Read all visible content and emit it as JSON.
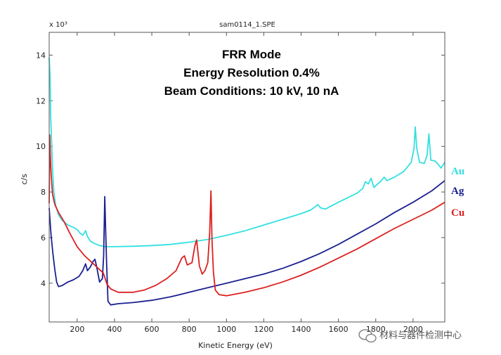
{
  "chart_data": {
    "type": "line",
    "title": "sam0114_1.SPE",
    "xlabel": "Kinetic Energy (eV)",
    "ylabel": "c/s",
    "y_multiplier": "x 10³",
    "xlim": [
      50,
      2170
    ],
    "ylim": [
      2.3,
      15
    ],
    "x_ticks": [
      200,
      400,
      600,
      800,
      1000,
      1200,
      1400,
      1600,
      1800,
      2000
    ],
    "y_ticks": [
      4,
      6,
      8,
      10,
      12,
      14
    ],
    "annotations": [
      "FRR Mode",
      "Energy Resolution 0.4%",
      "Beam Conditions: 10 kV, 10 nA"
    ],
    "series": [
      {
        "name": "Au",
        "color": "#33e0e0",
        "points": [
          [
            50,
            13.9
          ],
          [
            55,
            13.0
          ],
          [
            58,
            11.3
          ],
          [
            62,
            10.4
          ],
          [
            68,
            9.0
          ],
          [
            75,
            8.0
          ],
          [
            85,
            7.4
          ],
          [
            100,
            7.0
          ],
          [
            120,
            6.75
          ],
          [
            150,
            6.55
          ],
          [
            180,
            6.45
          ],
          [
            200,
            6.35
          ],
          [
            215,
            6.2
          ],
          [
            230,
            6.1
          ],
          [
            245,
            6.3
          ],
          [
            255,
            6.05
          ],
          [
            270,
            5.85
          ],
          [
            290,
            5.75
          ],
          [
            320,
            5.65
          ],
          [
            350,
            5.6
          ],
          [
            400,
            5.6
          ],
          [
            500,
            5.62
          ],
          [
            600,
            5.65
          ],
          [
            700,
            5.7
          ],
          [
            800,
            5.8
          ],
          [
            900,
            5.92
          ],
          [
            1000,
            6.1
          ],
          [
            1100,
            6.3
          ],
          [
            1200,
            6.55
          ],
          [
            1300,
            6.8
          ],
          [
            1400,
            7.05
          ],
          [
            1450,
            7.2
          ],
          [
            1475,
            7.35
          ],
          [
            1490,
            7.45
          ],
          [
            1505,
            7.3
          ],
          [
            1530,
            7.25
          ],
          [
            1600,
            7.55
          ],
          [
            1700,
            7.95
          ],
          [
            1730,
            8.15
          ],
          [
            1745,
            8.45
          ],
          [
            1760,
            8.35
          ],
          [
            1775,
            8.6
          ],
          [
            1790,
            8.2
          ],
          [
            1830,
            8.5
          ],
          [
            1845,
            8.65
          ],
          [
            1860,
            8.5
          ],
          [
            1900,
            8.65
          ],
          [
            1950,
            8.9
          ],
          [
            1990,
            9.3
          ],
          [
            2005,
            9.9
          ],
          [
            2012,
            10.85
          ],
          [
            2020,
            9.9
          ],
          [
            2035,
            9.3
          ],
          [
            2060,
            9.25
          ],
          [
            2075,
            9.6
          ],
          [
            2085,
            10.55
          ],
          [
            2095,
            9.4
          ],
          [
            2120,
            9.35
          ],
          [
            2150,
            9.05
          ],
          [
            2170,
            9.3
          ]
        ]
      },
      {
        "name": "Ag",
        "color": "#1a2090",
        "points": [
          [
            50,
            7.3
          ],
          [
            55,
            6.7
          ],
          [
            60,
            6.1
          ],
          [
            70,
            5.3
          ],
          [
            80,
            4.6
          ],
          [
            90,
            4.05
          ],
          [
            100,
            3.85
          ],
          [
            120,
            3.9
          ],
          [
            150,
            4.05
          ],
          [
            180,
            4.15
          ],
          [
            210,
            4.3
          ],
          [
            230,
            4.55
          ],
          [
            245,
            4.85
          ],
          [
            255,
            4.55
          ],
          [
            270,
            4.7
          ],
          [
            285,
            4.95
          ],
          [
            295,
            5.05
          ],
          [
            305,
            4.7
          ],
          [
            320,
            4.05
          ],
          [
            335,
            4.2
          ],
          [
            342,
            5.2
          ],
          [
            348,
            7.8
          ],
          [
            352,
            6.5
          ],
          [
            358,
            4.8
          ],
          [
            365,
            3.2
          ],
          [
            380,
            3.05
          ],
          [
            420,
            3.1
          ],
          [
            500,
            3.15
          ],
          [
            600,
            3.25
          ],
          [
            700,
            3.4
          ],
          [
            800,
            3.6
          ],
          [
            900,
            3.8
          ],
          [
            1000,
            4.0
          ],
          [
            1100,
            4.2
          ],
          [
            1200,
            4.4
          ],
          [
            1300,
            4.65
          ],
          [
            1400,
            4.95
          ],
          [
            1500,
            5.3
          ],
          [
            1600,
            5.7
          ],
          [
            1700,
            6.15
          ],
          [
            1800,
            6.6
          ],
          [
            1900,
            7.1
          ],
          [
            2000,
            7.55
          ],
          [
            2100,
            8.05
          ],
          [
            2170,
            8.5
          ]
        ]
      },
      {
        "name": "Cu",
        "color": "#dd2020",
        "points": [
          [
            50,
            7.5
          ],
          [
            53,
            10.5
          ],
          [
            56,
            9.6
          ],
          [
            60,
            8.8
          ],
          [
            68,
            7.9
          ],
          [
            80,
            7.45
          ],
          [
            100,
            7.1
          ],
          [
            130,
            6.7
          ],
          [
            160,
            6.2
          ],
          [
            200,
            5.6
          ],
          [
            240,
            5.2
          ],
          [
            280,
            4.9
          ],
          [
            320,
            4.6
          ],
          [
            340,
            4.45
          ],
          [
            350,
            4.2
          ],
          [
            360,
            3.95
          ],
          [
            380,
            3.75
          ],
          [
            420,
            3.6
          ],
          [
            500,
            3.6
          ],
          [
            560,
            3.7
          ],
          [
            620,
            3.9
          ],
          [
            680,
            4.2
          ],
          [
            730,
            4.55
          ],
          [
            760,
            5.1
          ],
          [
            775,
            5.2
          ],
          [
            790,
            4.8
          ],
          [
            815,
            4.9
          ],
          [
            830,
            5.6
          ],
          [
            840,
            5.9
          ],
          [
            855,
            4.75
          ],
          [
            870,
            4.4
          ],
          [
            885,
            4.55
          ],
          [
            900,
            4.9
          ],
          [
            910,
            6.2
          ],
          [
            917,
            8.05
          ],
          [
            922,
            6.0
          ],
          [
            930,
            4.5
          ],
          [
            940,
            3.7
          ],
          [
            960,
            3.5
          ],
          [
            1000,
            3.45
          ],
          [
            1100,
            3.6
          ],
          [
            1200,
            3.8
          ],
          [
            1300,
            4.05
          ],
          [
            1400,
            4.35
          ],
          [
            1500,
            4.7
          ],
          [
            1600,
            5.1
          ],
          [
            1700,
            5.5
          ],
          [
            1800,
            5.95
          ],
          [
            1900,
            6.4
          ],
          [
            2000,
            6.8
          ],
          [
            2100,
            7.2
          ],
          [
            2170,
            7.55
          ]
        ]
      }
    ]
  },
  "watermark": "材料与器件检测中心"
}
